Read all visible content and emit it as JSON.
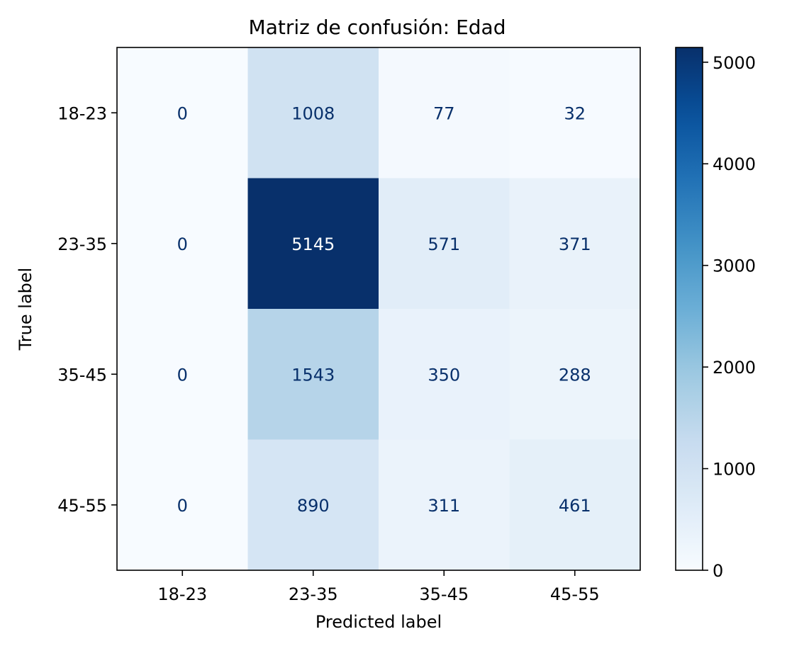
{
  "chart_data": {
    "type": "heatmap",
    "title": "Matriz de confusión: Edad",
    "xlabel": "Predicted label",
    "ylabel": "True label",
    "x_categories": [
      "18-23",
      "23-35",
      "35-45",
      "45-55"
    ],
    "y_categories": [
      "18-23",
      "23-35",
      "35-45",
      "45-55"
    ],
    "values": [
      [
        0,
        1008,
        77,
        32
      ],
      [
        0,
        5145,
        571,
        371
      ],
      [
        0,
        1543,
        350,
        288
      ],
      [
        0,
        890,
        311,
        461
      ]
    ],
    "colormap": "Blues",
    "value_range": [
      0,
      5145
    ],
    "colorbar": {
      "ticks": [
        0,
        1000,
        2000,
        3000,
        4000,
        5000
      ],
      "tick_labels": [
        "0",
        "1000",
        "2000",
        "3000",
        "4000",
        "5000"
      ]
    },
    "annotation_color_light": "#08306b",
    "annotation_color_dark": "#ffffff",
    "grid": false
  }
}
